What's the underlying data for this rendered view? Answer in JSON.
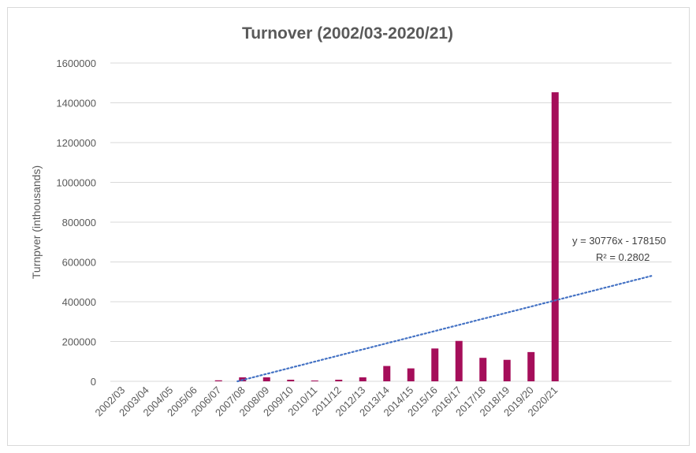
{
  "chart_data": {
    "type": "bar",
    "title": "Turnover (2002/03-2020/21)",
    "ylabel": "Turnpver (inthousands)",
    "xlabel": "",
    "ylim": [
      0,
      1600000
    ],
    "yticks": [
      0,
      200000,
      400000,
      600000,
      800000,
      1000000,
      1200000,
      1400000,
      1600000
    ],
    "grid": true,
    "categories": [
      "2002/03",
      "2003/04",
      "2004/05",
      "2005/06",
      "2006/07",
      "2007/08",
      "2008/09",
      "2009/10",
      "2010/11",
      "2011/12",
      "2012/13",
      "2013/14",
      "2014/15",
      "2015/16",
      "2016/17",
      "2017/18",
      "2018/19",
      "2019/20",
      "2020/21"
    ],
    "series": [
      {
        "color": "#a50e5a",
        "values": [
          0,
          0,
          0,
          0,
          5000,
          20000,
          20000,
          8000,
          4000,
          8000,
          20000,
          77000,
          65000,
          165000,
          203000,
          118000,
          108000,
          147000,
          1453000
        ]
      }
    ],
    "trendline": {
      "type": "linear",
      "slope": 30776,
      "intercept": -178150,
      "equation_label": "y = 30776x - 178150",
      "r2_label": "R² = 0.2802",
      "color": "#4472c4",
      "style": "dotted"
    }
  }
}
